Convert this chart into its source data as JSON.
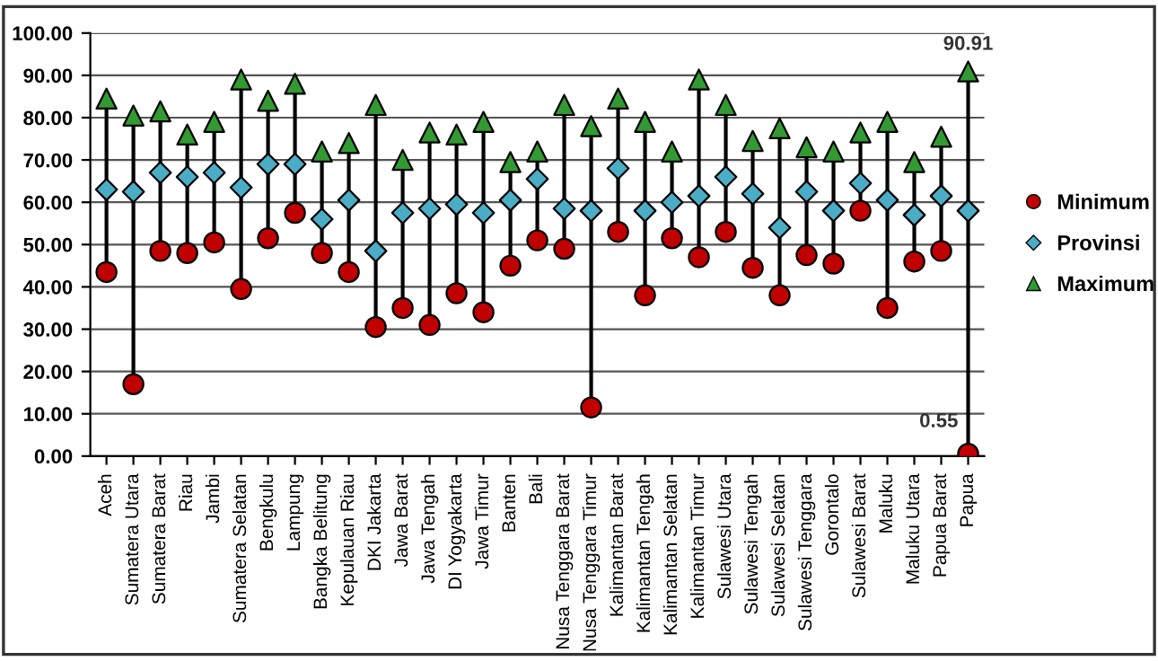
{
  "chart_data": {
    "type": "scatter",
    "categories": [
      "Aceh",
      "Sumatera Utara",
      "Sumatera Barat",
      "Riau",
      "Jambi",
      "Sumatera Selatan",
      "Bengkulu",
      "Lampung",
      "Bangka Belitung",
      "Kepulauan Riau",
      "DKI Jakarta",
      "Jawa Barat",
      "Jawa Tengah",
      "DI Yogyakarta",
      "Jawa Timur",
      "Banten",
      "Bali",
      "Nusa Tenggara Barat",
      "Nusa Tenggara Timur",
      "Kalimantan Barat",
      "Kalimantan Tengah",
      "Kalimantan Selatan",
      "Kalimantan Timur",
      "Sulawesi Utara",
      "Sulawesi Tengah",
      "Sulawesi Selatan",
      "Sulawesi Tenggara",
      "Gorontalo",
      "Sulawesi Barat",
      "Maluku",
      "Maluku Utara",
      "Papua Barat",
      "Papua"
    ],
    "series": [
      {
        "name": "Minimum",
        "color": "#c00000",
        "marker": "circle",
        "values": [
          43.5,
          17,
          48.5,
          48,
          50.5,
          39.5,
          51.5,
          57.5,
          48,
          43.5,
          30.5,
          35,
          31,
          38.5,
          34,
          45,
          51,
          49,
          11.5,
          53,
          38,
          51.5,
          47,
          53,
          44.5,
          38,
          47.5,
          45.5,
          58,
          35,
          46,
          48.5,
          0.55
        ],
        "value_labels": [
          null,
          null,
          null,
          null,
          null,
          null,
          null,
          null,
          null,
          null,
          null,
          null,
          null,
          null,
          null,
          null,
          null,
          null,
          null,
          null,
          null,
          null,
          null,
          null,
          null,
          null,
          null,
          null,
          null,
          null,
          null,
          null,
          "0.55"
        ]
      },
      {
        "name": "Provinsi",
        "color": "#4bacc6",
        "marker": "diamond",
        "values": [
          63,
          62.5,
          67,
          66,
          67,
          63.5,
          69,
          69,
          56,
          60.5,
          48.5,
          57.5,
          58.5,
          59.5,
          57.5,
          60.5,
          65.5,
          58.5,
          58,
          68,
          58,
          60,
          61.5,
          66,
          62,
          54,
          62.5,
          58,
          64.5,
          60.5,
          57,
          61.5,
          58
        ]
      },
      {
        "name": "Maximum",
        "color": "#339933",
        "marker": "triangle",
        "values": [
          84.5,
          80.5,
          81.5,
          76,
          79,
          89,
          84,
          88,
          72,
          74,
          83,
          70,
          76.5,
          76,
          79,
          69.5,
          72,
          83,
          78,
          84.5,
          79,
          72,
          89,
          83,
          74.5,
          77.5,
          73,
          72,
          76.5,
          79,
          69.5,
          75.5,
          90.91
        ],
        "value_labels": [
          null,
          null,
          null,
          null,
          null,
          null,
          null,
          null,
          null,
          null,
          null,
          null,
          null,
          null,
          null,
          null,
          null,
          null,
          null,
          null,
          null,
          null,
          null,
          null,
          null,
          null,
          null,
          null,
          null,
          null,
          null,
          null,
          "90.91"
        ]
      }
    ],
    "ylim": [
      0,
      100
    ],
    "yticks": [
      {
        "value": 0,
        "label": "0.00"
      },
      {
        "value": 10,
        "label": "10.00"
      },
      {
        "value": 20,
        "label": "20.00"
      },
      {
        "value": 30,
        "label": "30.00"
      },
      {
        "value": 40,
        "label": "40.00"
      },
      {
        "value": 50,
        "label": "50.00"
      },
      {
        "value": 60,
        "label": "60.00"
      },
      {
        "value": 70,
        "label": "70.00"
      },
      {
        "value": 80,
        "label": "80.00"
      },
      {
        "value": 90,
        "label": "90.00"
      },
      {
        "value": 100,
        "label": "100.00"
      }
    ],
    "grid": "y",
    "legend": "right"
  }
}
